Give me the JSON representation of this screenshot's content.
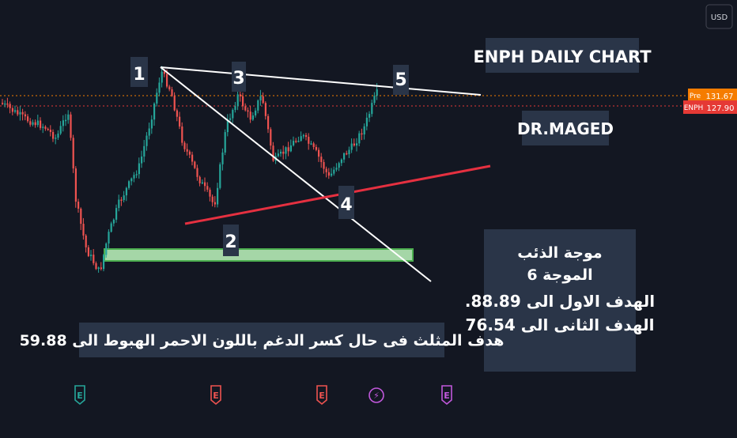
{
  "currency_button": "USD",
  "title": "ENPH  DAILY CHART",
  "author": "DR.MAGED",
  "price_tags": [
    {
      "label": "Pre",
      "value": "131.67",
      "color": "#f57c00"
    },
    {
      "label": "ENPH",
      "value": "127.90",
      "color": "#e53935"
    }
  ],
  "wave_labels": [
    "1",
    "2",
    "3",
    "4",
    "5"
  ],
  "info_box": {
    "line1": "موجة الذئب",
    "line2": "الموجة 6",
    "line3": "الهدف الاول الى  88.89.",
    "line4": "الهدف الثانى الى  76.54"
  },
  "bottom_note": "هدف المثلث  فى حال كسر الدغم باللون الاحمر الهبوط الى 59.88",
  "earnings_markers": [
    {
      "glyph": "E",
      "color": "#26a69a"
    },
    {
      "glyph": "E",
      "color": "#ef5350"
    },
    {
      "glyph": "E",
      "color": "#ef5350"
    },
    {
      "glyph": "⚡",
      "color": "#c158dc"
    },
    {
      "glyph": "E",
      "color": "#c158dc"
    }
  ],
  "chart_data": {
    "type": "candlestick",
    "series": [
      {
        "name": "ENPH",
        "last": 127.9
      },
      {
        "name": "Pre",
        "last": 131.67
      }
    ],
    "annotations": {
      "wolfe_wave_points": [
        "1",
        "2",
        "3",
        "4",
        "5"
      ],
      "support_zone": "green",
      "trend_line_color": "red"
    }
  }
}
